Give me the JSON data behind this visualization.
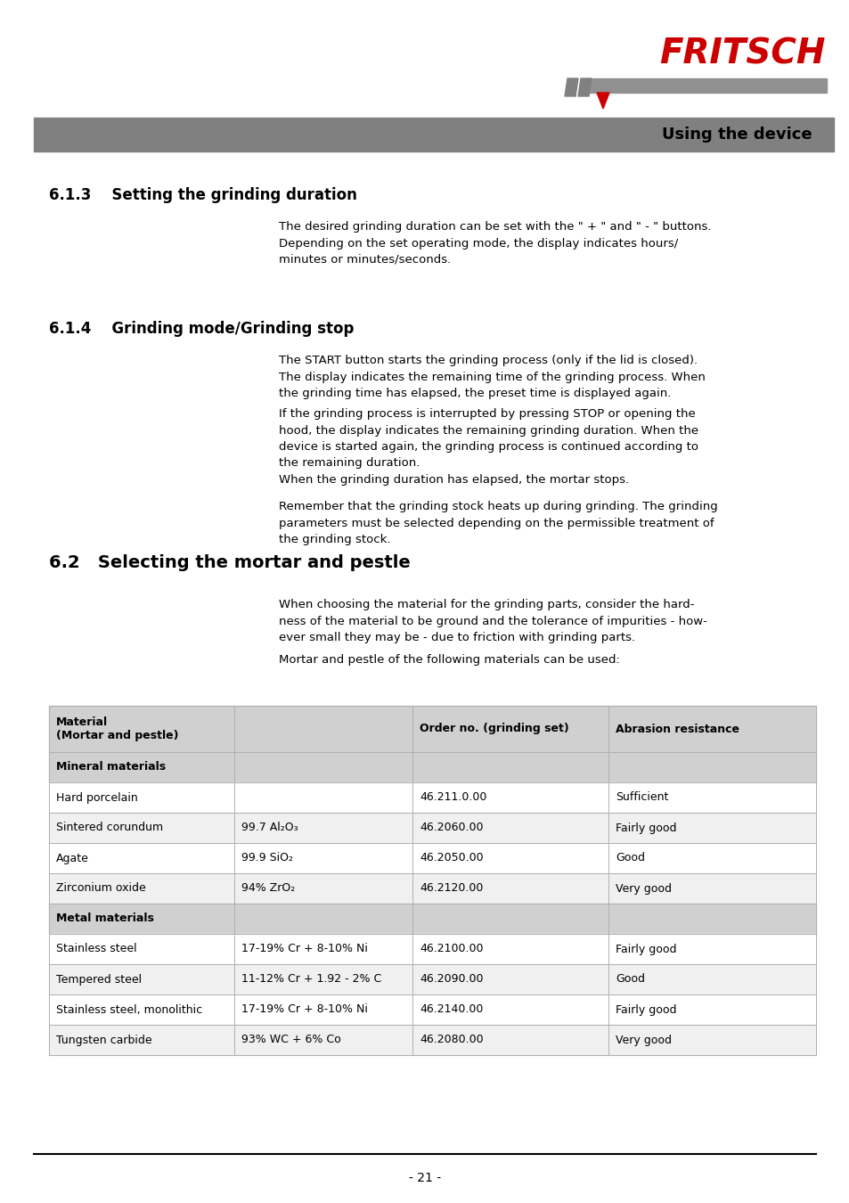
{
  "page_bg": "#ffffff",
  "header_bar_color": "#808080",
  "header_text": "Using the device",
  "header_text_color": "#000000",
  "section_613_title": "6.1.3    Setting the grinding duration",
  "section_613_body": "The desired grinding duration can be set with the \" + \" and \" - \" buttons.\nDepending on the set operating mode, the display indicates hours/\nminutes or minutes/seconds.",
  "section_614_title": "6.1.4    Grinding mode/Grinding stop",
  "section_614_body1": "The START button starts the grinding process (only if the lid is closed).\nThe display indicates the remaining time of the grinding process. When\nthe grinding time has elapsed, the preset time is displayed again.",
  "section_614_body2": "If the grinding process is interrupted by pressing STOP or opening the\nhood, the display indicates the remaining grinding duration. When the\ndevice is started again, the grinding process is continued according to\nthe remaining duration.",
  "section_614_body3": "When the grinding duration has elapsed, the mortar stops.",
  "section_614_body4": "Remember that the grinding stock heats up during grinding. The grinding\nparameters must be selected depending on the permissible treatment of\nthe grinding stock.",
  "section_62_title": "6.2   Selecting the mortar and pestle",
  "section_62_body1": "When choosing the material for the grinding parts, consider the hard-\nness of the material to be ground and the tolerance of impurities - how-\never small they may be - due to friction with grinding parts.",
  "section_62_body2": "Mortar and pestle of the following materials can be used:",
  "table_header_bg": "#d0d0d0",
  "table_alt_bg": "#f0f0f0",
  "table_white_bg": "#ffffff",
  "table_border_color": "#b0b0b0",
  "table_section_mineral": "Mineral materials",
  "table_section_metal": "Metal materials",
  "table_col_headers": [
    "Material\n(Mortar and pestle)",
    "",
    "Order no. (grinding set)",
    "Abrasion resistance"
  ],
  "table_rows": [
    [
      "Hard porcelain",
      "",
      "46.211.0.00",
      "Sufficient",
      "white"
    ],
    [
      "Sintered corundum",
      "99.7 Al₂O₃",
      "46.2060.00",
      "Fairly good",
      "alt"
    ],
    [
      "Agate",
      "99.9 SiO₂",
      "46.2050.00",
      "Good",
      "white"
    ],
    [
      "Zirconium oxide",
      "94% ZrO₂",
      "46.2120.00",
      "Very good",
      "alt"
    ],
    [
      "Stainless steel",
      "17-19% Cr + 8-10% Ni",
      "46.2100.00",
      "Fairly good",
      "white"
    ],
    [
      "Tempered steel",
      "11-12% Cr + 1.92 - 2% C",
      "46.2090.00",
      "Good",
      "alt"
    ],
    [
      "Stainless steel, monolithic",
      "17-19% Cr + 8-10% Ni",
      "46.2140.00",
      "Fairly good",
      "white"
    ],
    [
      "Tungsten carbide",
      "93% WC + 6% Co",
      "46.2080.00",
      "Very good",
      "alt"
    ]
  ],
  "footer_text": "- 21 -",
  "logo_color": "#cc0000",
  "logo_gray": "#909090",
  "logo_dark_gray": "#606060"
}
